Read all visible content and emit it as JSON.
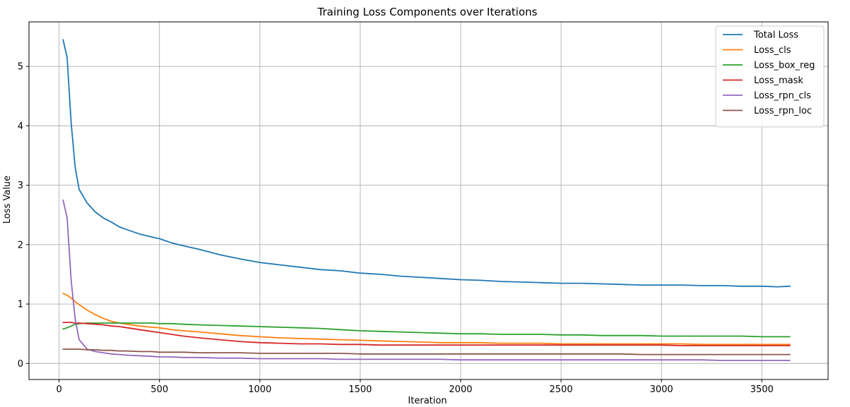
{
  "chart_data": {
    "type": "line",
    "title": "Training Loss Components over Iterations",
    "xlabel": "Iteration",
    "ylabel": "Loss Value",
    "xlim": [
      -150,
      3830
    ],
    "ylim": [
      -0.27,
      5.75
    ],
    "xticks": [
      0,
      500,
      1000,
      1500,
      2000,
      2500,
      3000,
      3500
    ],
    "yticks": [
      0,
      1,
      2,
      3,
      4,
      5
    ],
    "grid": true,
    "legend_position": "top-right",
    "x": [
      20,
      40,
      60,
      80,
      100,
      140,
      180,
      220,
      260,
      300,
      340,
      400,
      460,
      500,
      560,
      620,
      700,
      800,
      900,
      1000,
      1100,
      1200,
      1300,
      1400,
      1500,
      1600,
      1700,
      1800,
      1900,
      2000,
      2100,
      2200,
      2300,
      2400,
      2500,
      2600,
      2700,
      2800,
      2900,
      3000,
      3100,
      3200,
      3300,
      3400,
      3500,
      3580,
      3640
    ],
    "series": [
      {
        "name": "Total Loss",
        "color": "#1f77b4",
        "values": [
          5.45,
          5.15,
          4.05,
          3.3,
          2.93,
          2.7,
          2.55,
          2.45,
          2.38,
          2.3,
          2.25,
          2.18,
          2.13,
          2.1,
          2.03,
          1.98,
          1.92,
          1.83,
          1.76,
          1.7,
          1.66,
          1.62,
          1.58,
          1.56,
          1.52,
          1.5,
          1.47,
          1.45,
          1.43,
          1.41,
          1.4,
          1.38,
          1.37,
          1.36,
          1.35,
          1.35,
          1.34,
          1.33,
          1.32,
          1.32,
          1.32,
          1.31,
          1.31,
          1.3,
          1.3,
          1.29,
          1.3
        ]
      },
      {
        "name": "Loss_cls",
        "color": "#ff7f0e",
        "values": [
          1.18,
          1.15,
          1.1,
          1.04,
          0.99,
          0.9,
          0.82,
          0.76,
          0.71,
          0.68,
          0.66,
          0.63,
          0.61,
          0.6,
          0.57,
          0.55,
          0.53,
          0.5,
          0.47,
          0.45,
          0.43,
          0.42,
          0.41,
          0.4,
          0.39,
          0.38,
          0.37,
          0.36,
          0.35,
          0.35,
          0.35,
          0.34,
          0.34,
          0.34,
          0.33,
          0.33,
          0.33,
          0.33,
          0.33,
          0.33,
          0.33,
          0.32,
          0.32,
          0.32,
          0.32,
          0.32,
          0.32
        ]
      },
      {
        "name": "Loss_box_reg",
        "color": "#2ca02c",
        "values": [
          0.58,
          0.6,
          0.63,
          0.66,
          0.67,
          0.68,
          0.68,
          0.68,
          0.68,
          0.68,
          0.68,
          0.68,
          0.68,
          0.67,
          0.67,
          0.66,
          0.65,
          0.64,
          0.63,
          0.62,
          0.61,
          0.6,
          0.59,
          0.57,
          0.55,
          0.54,
          0.53,
          0.52,
          0.51,
          0.5,
          0.5,
          0.49,
          0.49,
          0.49,
          0.48,
          0.48,
          0.47,
          0.47,
          0.47,
          0.46,
          0.46,
          0.46,
          0.46,
          0.46,
          0.45,
          0.45,
          0.45
        ]
      },
      {
        "name": "Loss_mask",
        "color": "#d62728",
        "values": [
          0.69,
          0.69,
          0.69,
          0.68,
          0.68,
          0.67,
          0.66,
          0.65,
          0.63,
          0.62,
          0.6,
          0.57,
          0.54,
          0.52,
          0.49,
          0.46,
          0.43,
          0.4,
          0.37,
          0.35,
          0.34,
          0.33,
          0.33,
          0.32,
          0.32,
          0.31,
          0.31,
          0.31,
          0.31,
          0.31,
          0.31,
          0.31,
          0.31,
          0.31,
          0.31,
          0.31,
          0.31,
          0.31,
          0.31,
          0.31,
          0.3,
          0.3,
          0.3,
          0.3,
          0.3,
          0.3,
          0.3
        ]
      },
      {
        "name": "Loss_rpn_cls",
        "color": "#9467bd",
        "values": [
          2.75,
          2.45,
          1.4,
          0.75,
          0.4,
          0.24,
          0.2,
          0.18,
          0.16,
          0.15,
          0.14,
          0.13,
          0.12,
          0.11,
          0.11,
          0.1,
          0.1,
          0.09,
          0.09,
          0.08,
          0.08,
          0.08,
          0.08,
          0.07,
          0.07,
          0.07,
          0.07,
          0.07,
          0.07,
          0.06,
          0.06,
          0.06,
          0.06,
          0.06,
          0.06,
          0.06,
          0.06,
          0.06,
          0.06,
          0.06,
          0.06,
          0.06,
          0.05,
          0.05,
          0.05,
          0.05,
          0.05
        ]
      },
      {
        "name": "Loss_rpn_loc",
        "color": "#8c564b",
        "values": [
          0.24,
          0.24,
          0.24,
          0.24,
          0.24,
          0.23,
          0.23,
          0.22,
          0.22,
          0.21,
          0.21,
          0.2,
          0.2,
          0.19,
          0.19,
          0.19,
          0.18,
          0.18,
          0.18,
          0.17,
          0.17,
          0.17,
          0.17,
          0.17,
          0.16,
          0.16,
          0.16,
          0.16,
          0.16,
          0.16,
          0.16,
          0.16,
          0.16,
          0.16,
          0.16,
          0.16,
          0.16,
          0.16,
          0.15,
          0.15,
          0.15,
          0.15,
          0.15,
          0.15,
          0.15,
          0.15,
          0.15
        ]
      }
    ]
  }
}
